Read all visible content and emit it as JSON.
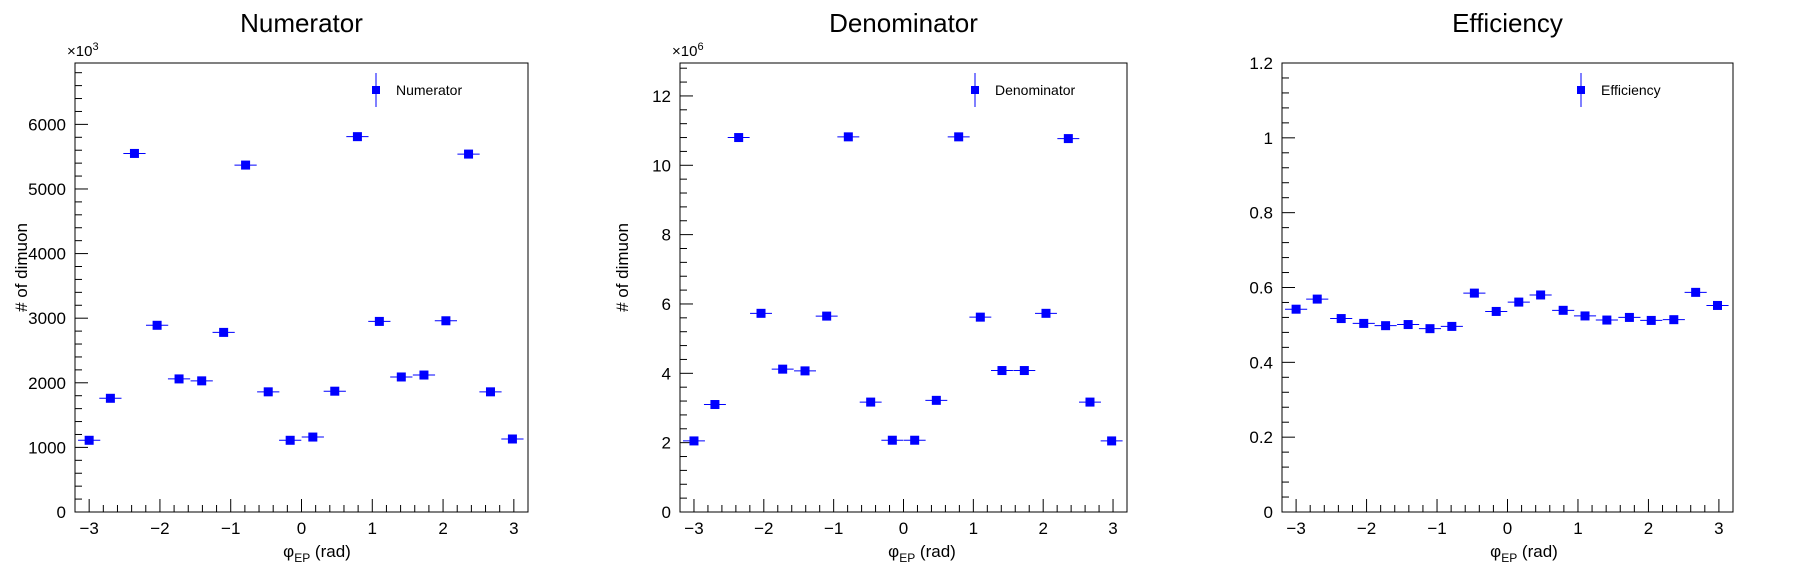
{
  "colors": {
    "marker": "#0000ff",
    "axis": "#000000",
    "background": "#ffffff"
  },
  "chart_data": [
    {
      "type": "scatter",
      "title": "Numerator",
      "ylabel": "# of dimuon",
      "xlabel": {
        "base": "φ",
        "sub": "EP",
        "rest": " (rad)"
      },
      "ylabel_multiplier": {
        "base": "×10",
        "exp": "3"
      },
      "legend": {
        "label": "Numerator",
        "position": "top-right"
      },
      "xlim": [
        -3.2,
        3.2
      ],
      "ylim": [
        0,
        6950
      ],
      "x_ticks": [
        -3,
        -2,
        -1,
        0,
        1,
        2,
        3
      ],
      "x_tick_labels": [
        "−3",
        "−2",
        "−1",
        "0",
        "1",
        "2",
        "3"
      ],
      "y_ticks": [
        0,
        1000,
        2000,
        3000,
        4000,
        5000,
        6000
      ],
      "y_tick_labels": [
        "0",
        "1000",
        "2000",
        "3000",
        "4000",
        "5000",
        "6000"
      ],
      "bin_half_width": 0.157,
      "series": [
        {
          "name": "Numerator",
          "x": [
            -3.0,
            -2.7,
            -2.36,
            -2.04,
            -1.73,
            -1.41,
            -1.1,
            -0.79,
            -0.47,
            -0.16,
            0.16,
            0.47,
            0.79,
            1.1,
            1.41,
            1.73,
            2.04,
            2.36,
            2.67,
            2.98
          ],
          "y": [
            1110,
            1760,
            5550,
            2890,
            2060,
            2030,
            2780,
            5370,
            1860,
            1110,
            1160,
            1870,
            5810,
            2950,
            2090,
            2120,
            2960,
            5540,
            1860,
            1130
          ],
          "y_err": [
            15,
            18,
            30,
            22,
            18,
            18,
            22,
            30,
            18,
            15,
            15,
            18,
            30,
            22,
            18,
            18,
            22,
            30,
            18,
            15
          ]
        }
      ]
    },
    {
      "type": "scatter",
      "title": "Denominator",
      "ylabel": "# of dimuon",
      "xlabel": {
        "base": "φ",
        "sub": "EP",
        "rest": " (rad)"
      },
      "ylabel_multiplier": {
        "base": "×10",
        "exp": "6"
      },
      "legend": {
        "label": "Denominator",
        "position": "top-right"
      },
      "xlim": [
        -3.2,
        3.2
      ],
      "ylim": [
        0,
        12.95
      ],
      "x_ticks": [
        -3,
        -2,
        -1,
        0,
        1,
        2,
        3
      ],
      "x_tick_labels": [
        "−3",
        "−2",
        "−1",
        "0",
        "1",
        "2",
        "3"
      ],
      "y_ticks": [
        0,
        2,
        4,
        6,
        8,
        10,
        12
      ],
      "y_tick_labels": [
        "0",
        "2",
        "4",
        "6",
        "8",
        "10",
        "12"
      ],
      "bin_half_width": 0.157,
      "series": [
        {
          "name": "Denominator",
          "x": [
            -3.0,
            -2.7,
            -2.36,
            -2.04,
            -1.73,
            -1.41,
            -1.1,
            -0.79,
            -0.47,
            -0.16,
            0.16,
            0.47,
            0.79,
            1.1,
            1.41,
            1.73,
            2.04,
            2.36,
            2.67,
            2.98
          ],
          "y": [
            2.05,
            3.1,
            10.8,
            5.73,
            4.12,
            4.07,
            5.65,
            10.82,
            3.17,
            2.07,
            2.07,
            3.22,
            10.82,
            5.62,
            4.08,
            4.08,
            5.73,
            10.77,
            3.17,
            2.05
          ],
          "y_err": [
            0.02,
            0.02,
            0.05,
            0.03,
            0.03,
            0.03,
            0.03,
            0.05,
            0.02,
            0.02,
            0.02,
            0.02,
            0.05,
            0.03,
            0.03,
            0.03,
            0.03,
            0.05,
            0.02,
            0.02
          ]
        }
      ]
    },
    {
      "type": "scatter",
      "title": "Efficiency",
      "ylabel": "",
      "xlabel": {
        "base": "φ",
        "sub": "EP",
        "rest": " (rad)"
      },
      "ylabel_multiplier": null,
      "legend": {
        "label": "Efficiency",
        "position": "top-right"
      },
      "xlim": [
        -3.2,
        3.2
      ],
      "ylim": [
        0,
        1.2
      ],
      "x_ticks": [
        -3,
        -2,
        -1,
        0,
        1,
        2,
        3
      ],
      "x_tick_labels": [
        "−3",
        "−2",
        "−1",
        "0",
        "1",
        "2",
        "3"
      ],
      "y_ticks": [
        0,
        0.2,
        0.4,
        0.6,
        0.8,
        1.0,
        1.2
      ],
      "y_tick_labels": [
        "0",
        "0.2",
        "0.4",
        "0.6",
        "0.8",
        "1",
        "1.2"
      ],
      "bin_half_width": 0.157,
      "series": [
        {
          "name": "Efficiency",
          "x": [
            -3.0,
            -2.7,
            -2.36,
            -2.04,
            -1.73,
            -1.41,
            -1.1,
            -0.79,
            -0.47,
            -0.16,
            0.16,
            0.47,
            0.79,
            1.1,
            1.41,
            1.73,
            2.04,
            2.36,
            2.67,
            2.98
          ],
          "y": [
            0.542,
            0.569,
            0.517,
            0.504,
            0.498,
            0.501,
            0.49,
            0.496,
            0.585,
            0.536,
            0.561,
            0.58,
            0.539,
            0.524,
            0.513,
            0.52,
            0.512,
            0.514,
            0.587,
            0.552
          ],
          "y_err": [
            0.006,
            0.006,
            0.004,
            0.004,
            0.004,
            0.004,
            0.004,
            0.004,
            0.006,
            0.006,
            0.006,
            0.006,
            0.004,
            0.004,
            0.004,
            0.004,
            0.004,
            0.004,
            0.006,
            0.006
          ]
        }
      ]
    }
  ]
}
